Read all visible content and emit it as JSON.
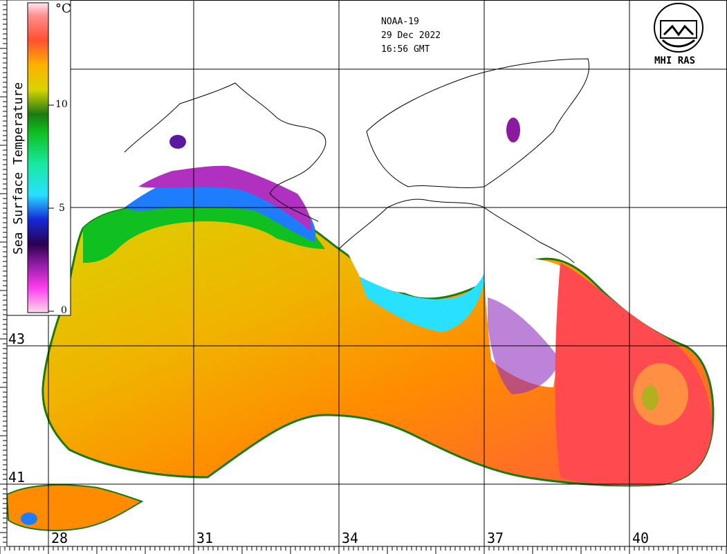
{
  "satellite": "NOAA-19",
  "date": "29 Dec 2022",
  "time": "16:56 GMT",
  "logo_text": "MHI RAS",
  "legend": {
    "title": "Sea Surface Temperature",
    "unit": "°C",
    "ticks": [
      "10",
      "5",
      "0"
    ],
    "colors": [
      "#ff9ad2",
      "#ff3cf0",
      "#8c1aa0",
      "#2b004f",
      "#1428d8",
      "#1e7cff",
      "#28e0ff",
      "#18e8a0",
      "#10c020",
      "#1a7a12",
      "#9fa81a",
      "#e8e000",
      "#ffb000",
      "#ff7000",
      "#ff3030",
      "#ff8080",
      "#ffd8e8"
    ]
  },
  "latitudes": [
    "43",
    "41"
  ],
  "longitudes": [
    "28",
    "31",
    "34",
    "37",
    "40"
  ]
}
